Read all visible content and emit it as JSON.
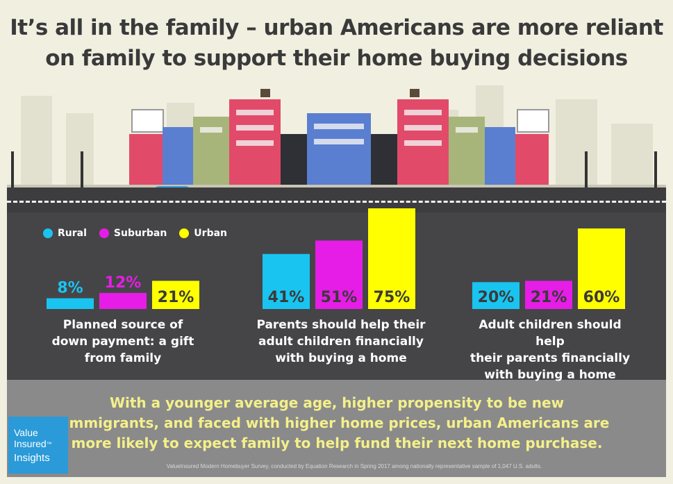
{
  "title": "It’s all in the family – urban Americans are more reliant on family to support their home buying decisions",
  "legend": [
    {
      "label": "Rural",
      "color": "#19c4f0"
    },
    {
      "label": "Suburban",
      "color": "#e61de6"
    },
    {
      "label": "Urban",
      "color": "#ffff00"
    }
  ],
  "chart_data": [
    {
      "type": "bar",
      "title": "Planned source of down payment: a gift from family",
      "categories": [
        "Rural",
        "Suburban",
        "Urban"
      ],
      "values": [
        8,
        12,
        21
      ],
      "labels": [
        "8%",
        "12%",
        "21%"
      ],
      "colors": [
        "#19c4f0",
        "#e61de6",
        "#ffff00"
      ]
    },
    {
      "type": "bar",
      "title": "Parents should help their adult children financially with buying a home",
      "categories": [
        "Rural",
        "Suburban",
        "Urban"
      ],
      "values": [
        41,
        51,
        75
      ],
      "labels": [
        "41%",
        "51%",
        "75%"
      ],
      "colors": [
        "#19c4f0",
        "#e61de6",
        "#ffff00"
      ]
    },
    {
      "type": "bar",
      "title": "Adult children should help their parents financially with buying a home",
      "categories": [
        "Rural",
        "Suburban",
        "Urban"
      ],
      "values": [
        20,
        21,
        60
      ],
      "labels": [
        "20%",
        "21%",
        "60%"
      ],
      "colors": [
        "#19c4f0",
        "#e61de6",
        "#ffff00"
      ]
    }
  ],
  "captions": [
    [
      "Planned source of",
      "down payment: a gift",
      "from family"
    ],
    [
      "Parents should help their",
      "adult children financially",
      "with buying a home"
    ],
    [
      "Adult children should help",
      "their parents financially",
      "with buying a home"
    ]
  ],
  "summary": [
    "With a younger average age, higher propensity to be new",
    "immigrants, and faced with higher home prices, urban Americans are",
    "more likely to expect family to help fund their next home purchase."
  ],
  "source": "ValueInsured Modern Homebuyer Survey, conducted by Equation Research in Spring 2017 among nationally representative sample of 1,047 U.S. adults.",
  "logo": {
    "line1": "Value",
    "line2": "Insured",
    "tm": "™",
    "line3": "Insights"
  },
  "colors": {
    "background": "#f1efe0",
    "panel": "#454547",
    "footer": "#8a8a8a",
    "summary_text": "#f4f08a"
  }
}
